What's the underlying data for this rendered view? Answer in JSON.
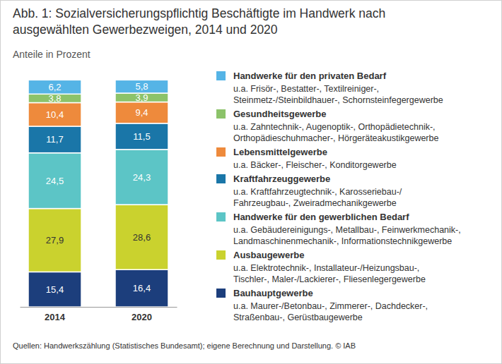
{
  "chart_data": {
    "type": "bar",
    "title": "Abb. 1: Sozialversicherungspflichtig Beschäftigte im Handwerk nach ausgewählten Gewerbezweigen, 2014 und 2020",
    "subtitle": "Anteile in Prozent",
    "source": "Quellen: Handwerkszählung (Statistisches Bundesamt); eigene Berechnung und Darstellung. © IAB",
    "categories": [
      "2014",
      "2020"
    ],
    "stacked": true,
    "data_labels": true,
    "tick_labels": "x",
    "ylim": [
      0,
      100
    ],
    "series": [
      {
        "name": "Handwerke für den privaten Bedarf",
        "color": "#55b4e6",
        "description": [
          "u.a. Frisör-, Bestatter-, Textilreiniger-,",
          "Steinmetz-/Steinbildhauer-, Schornsteinfegergewerbe"
        ],
        "values": [
          6.2,
          5.8
        ],
        "value_labels": [
          "6,2",
          "5,8"
        ]
      },
      {
        "name": "Gesundheitsgewerbe",
        "color": "#8cc36a",
        "description": [
          "u.a. Zahntechnik-, Augenoptik-, Orthopädietechnik-,",
          "Orthopädieschuhmacher-, Hörgeräteakustikgewerbe"
        ],
        "values": [
          3.8,
          3.9
        ],
        "value_labels": [
          "3,8",
          "3,9"
        ]
      },
      {
        "name": "Lebensmittelgewerbe",
        "color": "#ee8a3c",
        "description": [
          "u.a. Bäcker-, Fleischer-, Konditorgewerbe"
        ],
        "values": [
          10.4,
          9.4
        ],
        "value_labels": [
          "10,4",
          "9,4"
        ]
      },
      {
        "name": "Kraftfahrzeuggewerbe",
        "color": "#1a76a8",
        "description": [
          "u.a. Kraftfahrzeugtechnik-, Karosseriebau-/",
          "Fahrzeugbau-, Zweiradmechanikgewerbe"
        ],
        "values": [
          11.7,
          11.5
        ],
        "value_labels": [
          "11,7",
          "11,5"
        ]
      },
      {
        "name": "Handwerke für den gewerblichen Bedarf",
        "color": "#5cc5c6",
        "description": [
          "u.a. Gebäudereinigungs-, Metallbau-, Feinwerkmechanik-,",
          "Landmaschinenmechanik-, Informationstechnikgewerbe"
        ],
        "values": [
          24.5,
          24.3
        ],
        "value_labels": [
          "24,5",
          "24,3"
        ]
      },
      {
        "name": "Ausbaugewerbe",
        "color": "#cad22e",
        "description": [
          "u.a. Elektrotechnik-, Installateur-/Heizungsbau-,",
          "Tischler-, Maler-/Lackierer-, Fliesenlegergewerbe"
        ],
        "values": [
          27.9,
          28.6
        ],
        "value_labels": [
          "27,9",
          "28,6"
        ]
      },
      {
        "name": "Bauhauptgewerbe",
        "color": "#1c3e7c",
        "description": [
          "u.a. Maurer-/Betonbau-, Zimmerer-, Dachdecker-,",
          "Straßenbau-, Gerüstbaugewerbe"
        ],
        "values": [
          15.4,
          16.4
        ],
        "value_labels": [
          "15,4",
          "16,4"
        ]
      }
    ]
  }
}
